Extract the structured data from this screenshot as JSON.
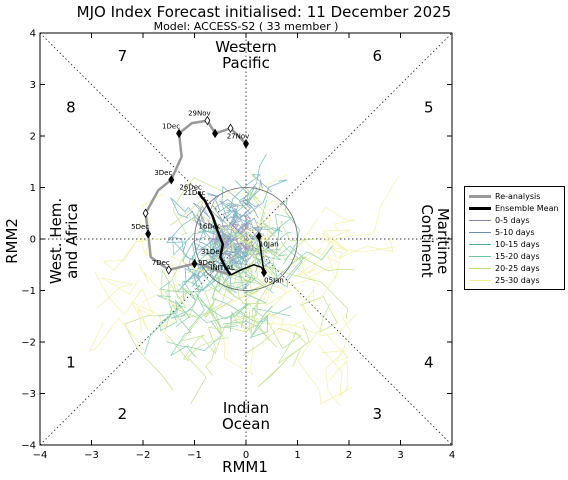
{
  "title": "MJO Index Forecast initialised:  11  December 2025",
  "subtitle": "Model: ACCESS-S2 ( 33 member )",
  "chart_data": {
    "type": "line",
    "xlabel": "RMM1",
    "ylabel": "RMM2",
    "xlim": [
      -4,
      4
    ],
    "ylim": [
      -4,
      4
    ],
    "xticks": [
      "−4",
      "−3",
      "−2",
      "−1",
      "0",
      "1",
      "2",
      "3",
      "4"
    ],
    "yticks": [
      "−4",
      "−3",
      "−2",
      "−1",
      "0",
      "1",
      "2",
      "3",
      "4"
    ],
    "tick_values": [
      -4,
      -3,
      -2,
      -1,
      0,
      1,
      2,
      3,
      4
    ],
    "phases": [
      {
        "label": "1",
        "x": -3.4,
        "y": -2.4
      },
      {
        "label": "2",
        "x": -2.4,
        "y": -3.4
      },
      {
        "label": "3",
        "x": 2.55,
        "y": -3.4
      },
      {
        "label": "4",
        "x": 3.55,
        "y": -2.4
      },
      {
        "label": "5",
        "x": 3.55,
        "y": 2.55
      },
      {
        "label": "6",
        "x": 2.55,
        "y": 3.55
      },
      {
        "label": "7",
        "x": -2.4,
        "y": 3.55
      },
      {
        "label": "8",
        "x": -3.4,
        "y": 2.55
      }
    ],
    "regions": {
      "top": [
        "Western",
        "Pacific"
      ],
      "bottom": [
        "Indian",
        "Ocean"
      ],
      "left": [
        "West. Hem.",
        "and Africa"
      ],
      "right": [
        "Maritime",
        "Continent"
      ]
    },
    "legend": {
      "position": "outside-right",
      "entries": [
        {
          "label": "Re-analysis",
          "color": "#999999",
          "width": 3
        },
        {
          "label": "Ensemble Mean",
          "color": "#000000",
          "width": 3
        },
        {
          "label": "0-5 days",
          "color": "#8d82b0",
          "width": 1
        },
        {
          "label": "5-10 days",
          "color": "#6a8fb3",
          "width": 1
        },
        {
          "label": "10-15 days",
          "color": "#55a9b0",
          "width": 1
        },
        {
          "label": "15-20 days",
          "color": "#6cc59a",
          "width": 1
        },
        {
          "label": "20-25 days",
          "color": "#b7dd73",
          "width": 1
        },
        {
          "label": "25-30 days",
          "color": "#f2ef92",
          "width": 1
        }
      ]
    },
    "reanalysis": {
      "color": "#999999",
      "points": [
        {
          "label": "27Nov",
          "x": 0.0,
          "y": 1.85
        },
        {
          "label": "",
          "x": -0.3,
          "y": 2.15
        },
        {
          "label": "",
          "x": -0.6,
          "y": 2.05
        },
        {
          "label": "29Nov",
          "x": -0.75,
          "y": 2.3
        },
        {
          "label": "",
          "x": -1.05,
          "y": 2.25
        },
        {
          "label": "1Dec",
          "x": -1.3,
          "y": 2.05
        },
        {
          "label": "",
          "x": -1.25,
          "y": 1.6
        },
        {
          "label": "3Dec",
          "x": -1.45,
          "y": 1.15
        },
        {
          "label": "",
          "x": -1.7,
          "y": 0.95
        },
        {
          "label": "",
          "x": -1.95,
          "y": 0.5
        },
        {
          "label": "5Dec",
          "x": -1.9,
          "y": 0.1
        },
        {
          "label": "",
          "x": -1.85,
          "y": -0.35
        },
        {
          "label": "7Dec",
          "x": -1.5,
          "y": -0.6
        },
        {
          "label": "",
          "x": -1.0,
          "y": -0.48
        },
        {
          "label": "",
          "x": -0.85,
          "y": -0.5
        },
        {
          "label": "9Dec",
          "x": -0.6,
          "y": -0.6
        },
        {
          "label": "INITIAL",
          "x": -0.3,
          "y": -0.7
        }
      ],
      "markers": [
        {
          "x": 0.0,
          "y": 1.85,
          "filled": true
        },
        {
          "x": -0.3,
          "y": 2.15,
          "filled": false
        },
        {
          "x": -0.6,
          "y": 2.05,
          "filled": true
        },
        {
          "x": -0.75,
          "y": 2.3,
          "filled": false
        },
        {
          "x": -1.3,
          "y": 2.05,
          "filled": true
        },
        {
          "x": -1.45,
          "y": 1.15,
          "filled": true
        },
        {
          "x": -1.95,
          "y": 0.5,
          "filled": false
        },
        {
          "x": -1.9,
          "y": 0.1,
          "filled": true
        },
        {
          "x": -1.5,
          "y": -0.6,
          "filled": false
        },
        {
          "x": -1.0,
          "y": -0.48,
          "filled": true
        }
      ]
    },
    "ensemble_mean": {
      "color": "#000000",
      "points": [
        {
          "label": "",
          "x": -0.3,
          "y": -0.7
        },
        {
          "label": "",
          "x": -0.4,
          "y": -0.55
        },
        {
          "label": "31Dec",
          "x": -0.5,
          "y": -0.35
        },
        {
          "label": "",
          "x": -0.45,
          "y": -0.1
        },
        {
          "label": "16Dec",
          "x": -0.55,
          "y": 0.15
        },
        {
          "label": "",
          "x": -0.65,
          "y": 0.45
        },
        {
          "label": "",
          "x": -0.8,
          "y": 0.75
        },
        {
          "label": "21Dec",
          "x": -0.85,
          "y": 0.8
        },
        {
          "label": "26Dec",
          "x": -0.92,
          "y": 0.9
        }
      ]
    },
    "forecast_end": {
      "color": "#000000",
      "points": [
        {
          "label": "",
          "x": -0.3,
          "y": -0.7
        },
        {
          "label": "",
          "x": -0.1,
          "y": -0.6
        },
        {
          "label": "",
          "x": 0.15,
          "y": -0.5
        },
        {
          "label": "",
          "x": 0.3,
          "y": -0.55
        },
        {
          "label": "05Jan",
          "x": 0.35,
          "y": -0.65
        },
        {
          "label": "",
          "x": 0.3,
          "y": -0.3
        },
        {
          "label": "10Jan",
          "x": 0.25,
          "y": 0.05
        }
      ],
      "markers": [
        {
          "x": 0.35,
          "y": -0.65,
          "filled": true
        },
        {
          "x": 0.25,
          "y": 0.05,
          "filled": true
        }
      ]
    },
    "ensemble_spread": {
      "note_colors": [
        "#8d82b0",
        "#6a8fb3",
        "#55a9b0",
        "#6cc59a",
        "#b7dd73",
        "#f2ef92"
      ],
      "members": 33,
      "center": {
        "x": -0.3,
        "y": -0.6
      }
    },
    "radius_circle": {
      "x": 0,
      "y": 0,
      "r": 1
    }
  }
}
